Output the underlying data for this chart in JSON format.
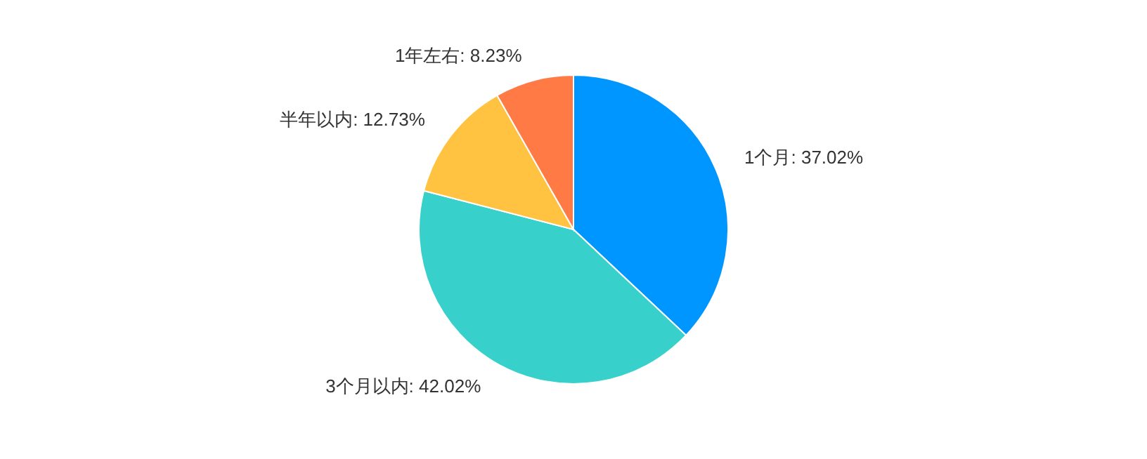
{
  "chart_data": {
    "type": "pie",
    "categories": [
      "1个月",
      "3个月以内",
      "半年以内",
      "1年左右"
    ],
    "values": [
      37.02,
      42.02,
      12.73,
      8.23
    ],
    "colors": [
      "#0096ff",
      "#38d0cb",
      "#ffc341",
      "#ff7a45"
    ],
    "value_labels": [
      "37.02%",
      "42.02%",
      "12.73%",
      "8.23%"
    ]
  }
}
